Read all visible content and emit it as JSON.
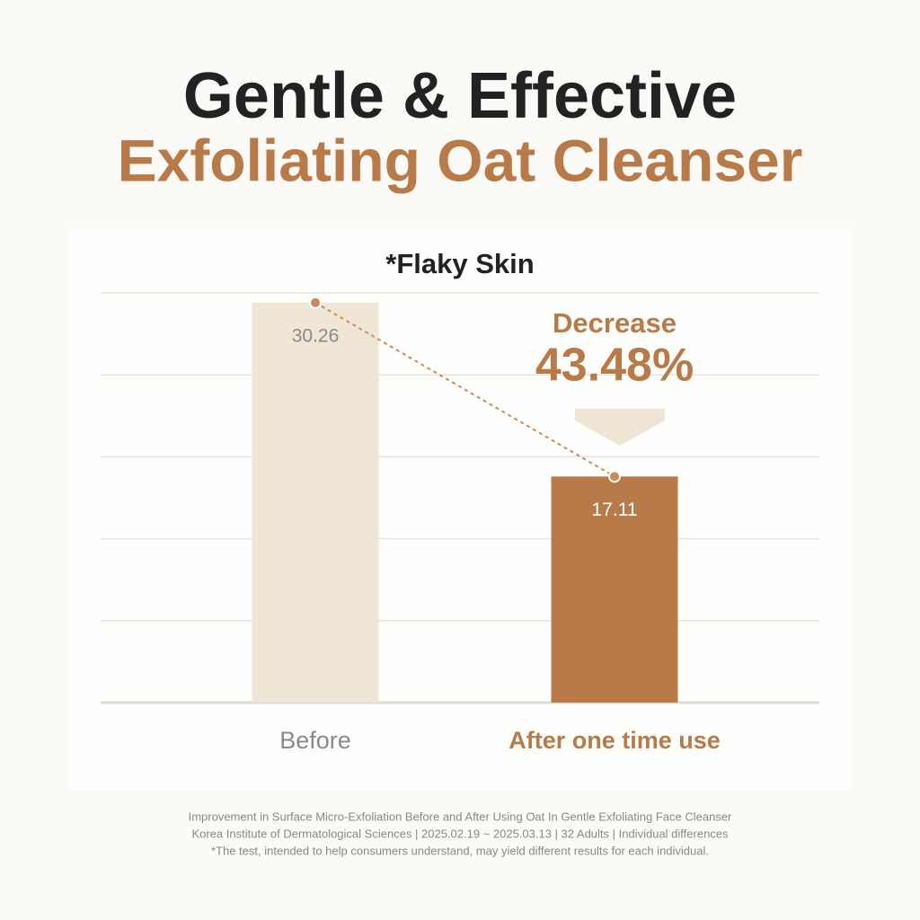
{
  "header": {
    "title": "Gentle & Effective",
    "subtitle": "Exfoliating Oat Cleanser"
  },
  "chart_data": {
    "type": "bar",
    "title": "*Flaky Skin",
    "categories": [
      "Before",
      "After one time use"
    ],
    "values": [
      30.26,
      17.11
    ],
    "colors": [
      "#f0e6d6",
      "#b87a48"
    ],
    "ylim": [
      0,
      31
    ],
    "grid": true,
    "annotations": [
      "Decrease",
      "43.48%"
    ]
  },
  "footnotes": [
    "Improvement in Surface Micro-Exfoliation Before and After Using Oat In Gentle Exfoliating Face Cleanser",
    "Korea Institute of Dermatological Sciences | 2025.02.19 ~ 2025.03.13 | 32 Adults | Individual differences",
    "*The test, intended to help consumers understand, may yield different results for each individual."
  ]
}
